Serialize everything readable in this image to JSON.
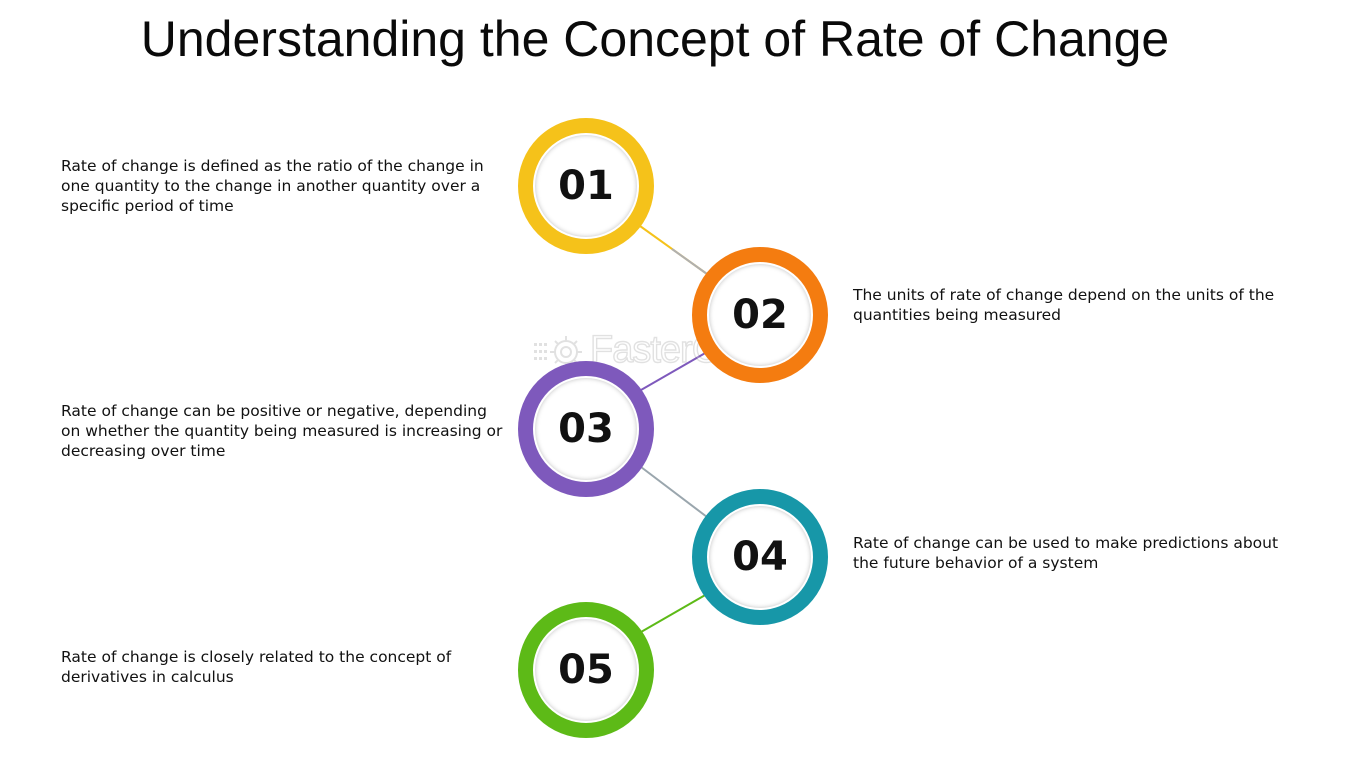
{
  "title": "Understanding the Concept of Rate of Change",
  "watermark": {
    "text": "FasterCapital",
    "icon": "gear-logo-icon"
  },
  "steps": [
    {
      "number": "01",
      "color": "#F5C21A",
      "text": "Rate of change is defined as the ratio of the change in one quantity to the change in another quantity over a specific period of time"
    },
    {
      "number": "02",
      "color": "#F47C10",
      "text": "The units of rate of change depend on the units of the quantities being measured"
    },
    {
      "number": "03",
      "color": "#7E59BC",
      "text": "Rate of change can be positive or negative, depending on whether the quantity being measured is increasing or decreasing over time"
    },
    {
      "number": "04",
      "color": "#1797A8",
      "text": "Rate of change can be used to make predictions about the future behavior of a system"
    },
    {
      "number": "05",
      "color": "#5DBA17",
      "text": "Rate of change is closely related to the concept of derivatives in calculus"
    }
  ]
}
